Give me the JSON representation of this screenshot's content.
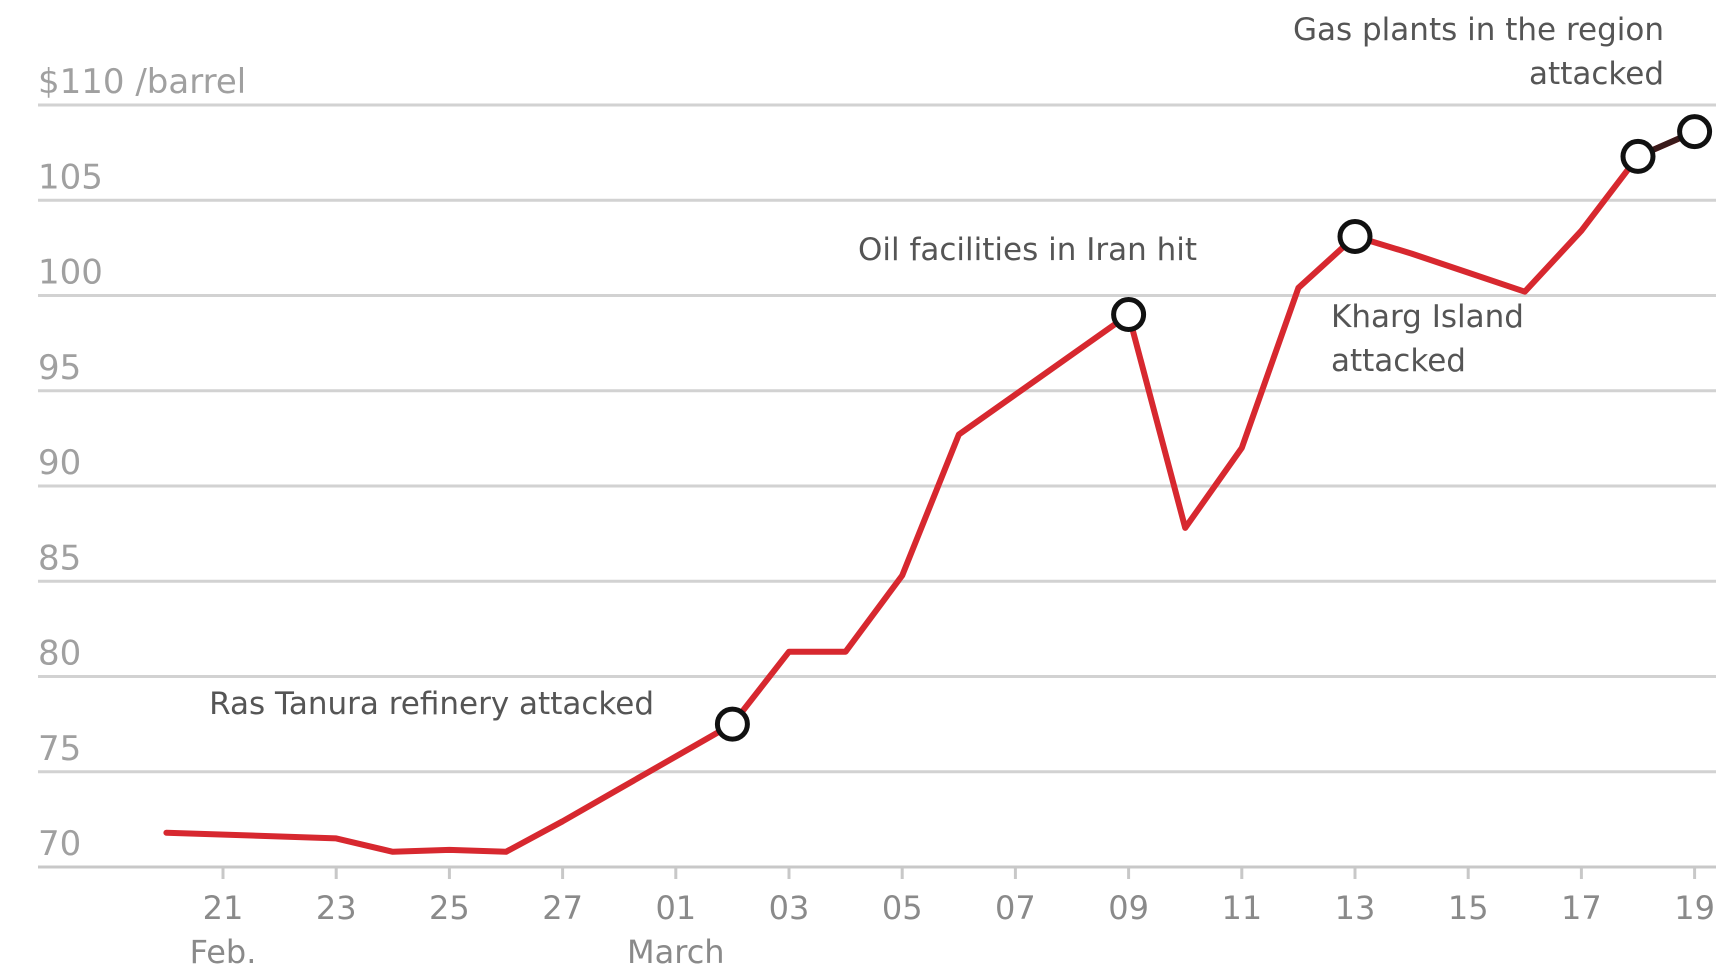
{
  "chart_data": {
    "type": "line",
    "ylabel": "$110 /barrel",
    "ylim": [
      70,
      110
    ],
    "y_ticks": [
      "70",
      "75",
      "80",
      "85",
      "90",
      "95",
      "100",
      "105",
      "$110 /barrel"
    ],
    "x_ticks": [
      {
        "label": "21",
        "sublabel": "Feb.",
        "date": "2026-02-21"
      },
      {
        "label": "23",
        "date": "2026-02-23"
      },
      {
        "label": "25",
        "date": "2026-02-25"
      },
      {
        "label": "27",
        "date": "2026-02-27"
      },
      {
        "label": "01",
        "sublabel": "March",
        "date": "2026-03-01"
      },
      {
        "label": "03",
        "date": "2026-03-03"
      },
      {
        "label": "05",
        "date": "2026-03-05"
      },
      {
        "label": "07",
        "date": "2026-03-07"
      },
      {
        "label": "09",
        "date": "2026-03-09"
      },
      {
        "label": "11",
        "date": "2026-03-11"
      },
      {
        "label": "13",
        "date": "2026-03-13"
      },
      {
        "label": "15",
        "date": "2026-03-15"
      },
      {
        "label": "17",
        "date": "2026-03-17"
      },
      {
        "label": "19",
        "date": "2026-03-19"
      }
    ],
    "grid": true,
    "series": [
      {
        "color": "#d7282f",
        "points": [
          {
            "date": "2026-02-20",
            "value": 71.8
          },
          {
            "date": "2026-02-23",
            "value": 71.5
          },
          {
            "date": "2026-02-24",
            "value": 70.8
          },
          {
            "date": "2026-02-25",
            "value": 70.9
          },
          {
            "date": "2026-02-26",
            "value": 70.8
          },
          {
            "date": "2026-02-27",
            "value": 72.4
          },
          {
            "date": "2026-02-28",
            "value": 74.1
          },
          {
            "date": "2026-03-01",
            "value": 75.8
          },
          {
            "date": "2026-03-02",
            "value": 77.5
          },
          {
            "date": "2026-03-03",
            "value": 81.3
          },
          {
            "date": "2026-03-04",
            "value": 81.3
          },
          {
            "date": "2026-03-05",
            "value": 85.3
          },
          {
            "date": "2026-03-06",
            "value": 92.7
          },
          {
            "date": "2026-03-07",
            "value": 94.8
          },
          {
            "date": "2026-03-08",
            "value": 96.9
          },
          {
            "date": "2026-03-09",
            "value": 99.0
          },
          {
            "date": "2026-03-10",
            "value": 87.8
          },
          {
            "date": "2026-03-11",
            "value": 92.0
          },
          {
            "date": "2026-03-12",
            "value": 100.4
          },
          {
            "date": "2026-03-13",
            "value": 103.1
          },
          {
            "date": "2026-03-14",
            "value": 102.2
          },
          {
            "date": "2026-03-15",
            "value": 101.2
          },
          {
            "date": "2026-03-16",
            "value": 100.2
          },
          {
            "date": "2026-03-17",
            "value": 103.4
          },
          {
            "date": "2026-03-18",
            "value": 107.3
          },
          {
            "date": "2026-03-19",
            "value": 108.6
          }
        ]
      }
    ],
    "markers": [
      {
        "date": "2026-03-02",
        "value": 77.5
      },
      {
        "date": "2026-03-09",
        "value": 99.0
      },
      {
        "date": "2026-03-13",
        "value": 103.1
      },
      {
        "date": "2026-03-18",
        "value": 107.3
      },
      {
        "date": "2026-03-19",
        "value": 108.6
      }
    ],
    "annotations": [
      {
        "lines": [
          "Ras Tanura refinery attacked"
        ],
        "date": "2026-03-02"
      },
      {
        "lines": [
          "Oil facilities in Iran hit"
        ],
        "date": "2026-03-09"
      },
      {
        "lines": [
          "Kharg Island",
          "attacked"
        ],
        "date": "2026-03-13"
      },
      {
        "lines": [
          "Gas plants in the region",
          "attacked"
        ],
        "date": "2026-03-19"
      }
    ]
  }
}
